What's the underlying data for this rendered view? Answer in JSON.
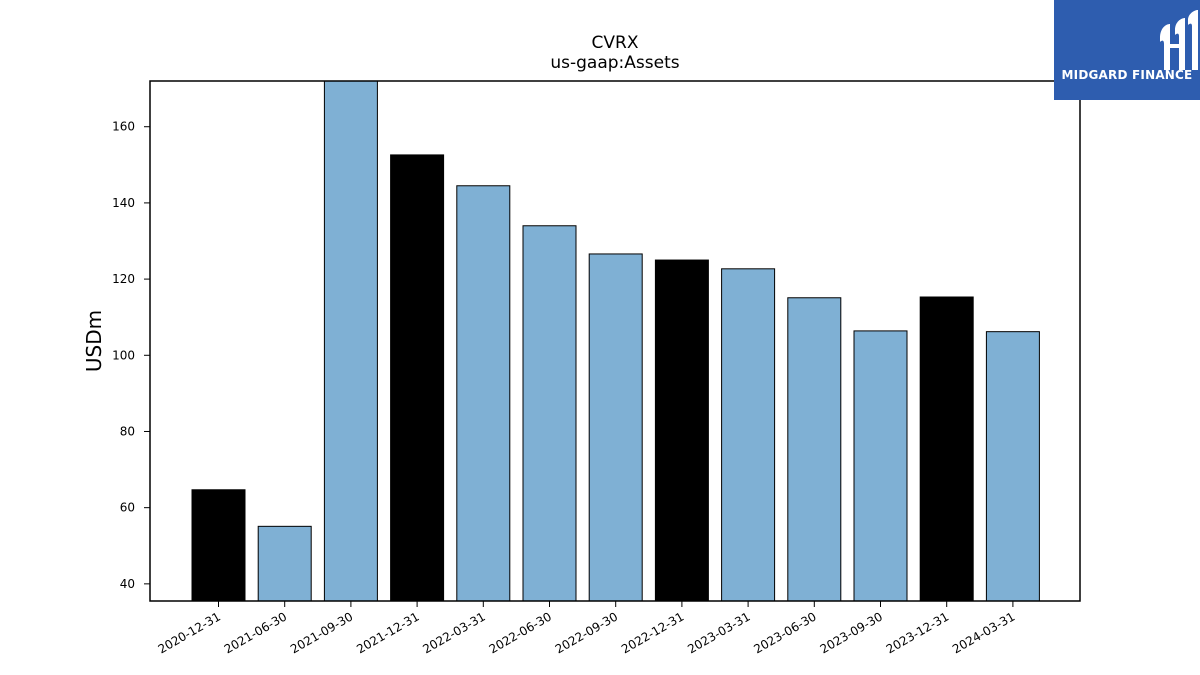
{
  "chart_data": {
    "type": "bar",
    "title": "CVRX",
    "subtitle": "us-gaap:Assets",
    "xlabel": "",
    "ylabel": "USDm",
    "ylim": [
      35.5,
      172
    ],
    "yticks": [
      40,
      60,
      80,
      100,
      120,
      140,
      160
    ],
    "categories": [
      "2020-12-31",
      "2021-06-30",
      "2021-09-30",
      "2021-12-31",
      "2022-03-31",
      "2022-06-30",
      "2022-09-30",
      "2022-12-31",
      "2023-03-31",
      "2023-06-30",
      "2023-09-30",
      "2023-12-31",
      "2024-03-31"
    ],
    "values": [
      64.7,
      55.1,
      172,
      152.6,
      144.5,
      134.0,
      126.6,
      125.0,
      122.7,
      115.1,
      106.4,
      115.3,
      106.2
    ],
    "colors": [
      "#000000",
      "#7fb0d4",
      "#7fb0d4",
      "#000000",
      "#7fb0d4",
      "#7fb0d4",
      "#7fb0d4",
      "#000000",
      "#7fb0d4",
      "#7fb0d4",
      "#7fb0d4",
      "#000000",
      "#7fb0d4"
    ],
    "grid": false
  },
  "logo": {
    "text": "MIDGARD FINANCE",
    "color": "#2e5daf"
  }
}
